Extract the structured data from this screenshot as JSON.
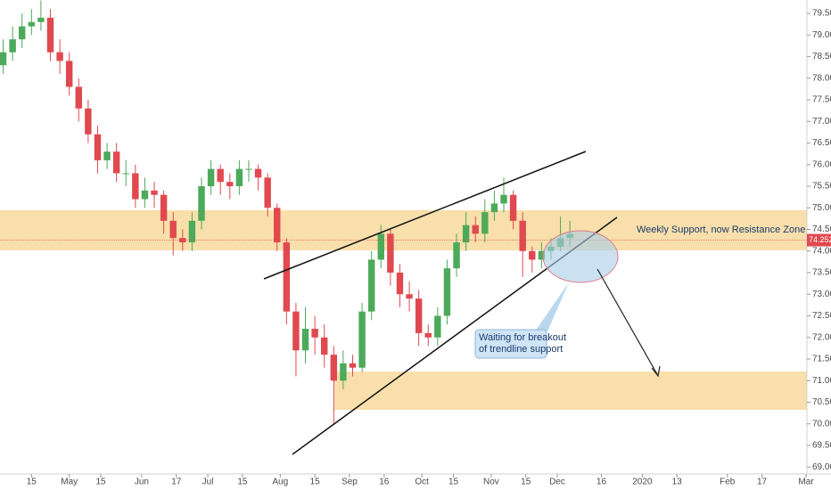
{
  "chart_data": {
    "type": "candlestick",
    "x": [
      -9,
      -6,
      -3,
      0,
      3,
      6,
      9,
      12,
      15,
      18,
      21,
      24,
      27,
      30,
      33,
      36,
      39,
      42,
      45,
      48,
      51,
      54,
      57,
      60,
      63,
      66,
      69,
      72,
      75,
      78,
      81,
      84,
      87,
      90,
      93,
      96,
      99,
      102,
      105,
      108,
      111,
      114,
      117,
      120,
      123,
      126,
      129,
      132,
      135,
      138,
      141,
      144,
      147,
      150,
      153,
      156,
      159,
      162,
      165,
      168,
      171
    ],
    "open": [
      78.3,
      78.6,
      78.9,
      79.2,
      79.3,
      79.4,
      78.6,
      78.4,
      77.8,
      77.3,
      76.7,
      76.1,
      76.3,
      75.8,
      75.8,
      75.2,
      75.4,
      75.3,
      74.7,
      74.3,
      74.2,
      74.7,
      75.5,
      75.9,
      75.6,
      75.5,
      75.9,
      75.9,
      75.7,
      75.0,
      74.2,
      72.6,
      71.7,
      72.2,
      72.0,
      71.6,
      71.0,
      71.4,
      71.3,
      72.6,
      73.8,
      74.4,
      73.5,
      73.0,
      72.9,
      72.1,
      72.0,
      72.5,
      73.6,
      74.2,
      74.6,
      74.4,
      74.9,
      75.1,
      75.3,
      74.7,
      74.0,
      73.8,
      74.0,
      74.1,
      74.3
    ],
    "high": [
      78.9,
      79.2,
      79.5,
      79.6,
      79.8,
      79.6,
      78.9,
      78.6,
      78.0,
      77.5,
      76.9,
      76.5,
      76.5,
      76.1,
      76.0,
      75.7,
      75.6,
      75.4,
      74.9,
      74.5,
      74.9,
      75.7,
      76.1,
      76.0,
      75.8,
      76.1,
      76.1,
      76.0,
      75.8,
      75.1,
      74.3,
      72.8,
      72.7,
      72.5,
      72.3,
      71.8,
      71.7,
      71.6,
      72.8,
      74.0,
      74.6,
      74.5,
      73.7,
      73.3,
      73.1,
      72.3,
      72.7,
      73.8,
      74.4,
      74.9,
      74.8,
      75.2,
      75.4,
      75.7,
      75.4,
      74.9,
      74.1,
      74.2,
      74.3,
      74.8,
      74.7
    ],
    "low": [
      78.1,
      78.4,
      78.7,
      79.0,
      79.1,
      78.4,
      78.1,
      77.6,
      77.0,
      76.5,
      75.8,
      75.9,
      75.6,
      75.5,
      75.0,
      75.0,
      75.0,
      74.4,
      73.9,
      74.0,
      74.0,
      74.5,
      75.3,
      75.3,
      75.2,
      75.3,
      75.6,
      75.4,
      74.8,
      74.0,
      72.3,
      71.1,
      71.4,
      71.6,
      71.3,
      70.0,
      70.8,
      71.1,
      71.2,
      72.4,
      73.6,
      73.2,
      72.7,
      72.6,
      71.8,
      71.8,
      71.8,
      72.3,
      73.4,
      74.0,
      74.2,
      74.2,
      74.7,
      74.9,
      74.5,
      73.4,
      73.5,
      73.6,
      73.8,
      74.0,
      74.1
    ],
    "close": [
      78.6,
      78.9,
      79.2,
      79.3,
      79.4,
      78.6,
      78.4,
      77.8,
      77.3,
      76.7,
      76.1,
      76.3,
      75.8,
      75.8,
      75.2,
      75.4,
      75.3,
      74.7,
      74.3,
      74.2,
      74.7,
      75.5,
      75.9,
      75.6,
      75.5,
      75.9,
      75.9,
      75.7,
      75.0,
      74.2,
      72.6,
      71.7,
      72.2,
      72.0,
      71.6,
      71.0,
      71.4,
      71.3,
      72.6,
      73.8,
      74.4,
      73.5,
      73.0,
      72.9,
      72.1,
      72.0,
      72.5,
      73.6,
      74.2,
      74.6,
      74.4,
      74.9,
      75.1,
      75.3,
      74.7,
      74.0,
      73.8,
      74.0,
      74.1,
      74.3,
      74.4
    ],
    "up_color": "#4caa5a",
    "down_color": "#e0494f",
    "last_price": {
      "value": 74.252,
      "label": "74.252"
    },
    "last_price_color": "#e0494f",
    "xlim": [
      -10,
      246
    ],
    "xticks": [
      {
        "value": 0,
        "label": "15"
      },
      {
        "value": 12,
        "label": "May"
      },
      {
        "value": 22,
        "label": "15"
      },
      {
        "value": 35,
        "label": "Jun"
      },
      {
        "value": 46,
        "label": "17"
      },
      {
        "value": 56,
        "label": "Jul"
      },
      {
        "value": 67,
        "label": "15"
      },
      {
        "value": 79,
        "label": "Aug"
      },
      {
        "value": 90,
        "label": "15"
      },
      {
        "value": 101,
        "label": "Sep"
      },
      {
        "value": 112,
        "label": "16"
      },
      {
        "value": 124,
        "label": "Oct"
      },
      {
        "value": 134,
        "label": "15"
      },
      {
        "value": 146,
        "label": "Nov"
      },
      {
        "value": 157,
        "label": "15"
      },
      {
        "value": 167,
        "label": "Dec"
      },
      {
        "value": 181,
        "label": "16"
      },
      {
        "value": 194,
        "label": "2020"
      },
      {
        "value": 205,
        "label": "13"
      },
      {
        "value": 221,
        "label": "Feb"
      },
      {
        "value": 232,
        "label": "17"
      },
      {
        "value": 246,
        "label": "Mar"
      }
    ],
    "ylim": [
      68.84,
      79.81
    ],
    "yticks": [
      {
        "value": 69,
        "label": "69.000"
      },
      {
        "value": 69.5,
        "label": "69.500"
      },
      {
        "value": 70,
        "label": "70.000"
      },
      {
        "value": 70.5,
        "label": "70.500"
      },
      {
        "value": 71,
        "label": "71.000"
      },
      {
        "value": 71.5,
        "label": "71.500"
      },
      {
        "value": 72,
        "label": "72.000"
      },
      {
        "value": 72.5,
        "label": "72.500"
      },
      {
        "value": 73,
        "label": "73.000"
      },
      {
        "value": 73.5,
        "label": "73.500"
      },
      {
        "value": 74,
        "label": "74.000"
      },
      {
        "value": 74.5,
        "label": "74.500"
      },
      {
        "value": 75,
        "label": "75.000"
      },
      {
        "value": 75.5,
        "label": "75.500"
      },
      {
        "value": 76,
        "label": "76.000"
      },
      {
        "value": 76.5,
        "label": "76.500"
      },
      {
        "value": 77,
        "label": "77.000"
      },
      {
        "value": 77.5,
        "label": "77.500"
      },
      {
        "value": 78,
        "label": "78.000"
      },
      {
        "value": 78.5,
        "label": "78.500"
      },
      {
        "value": 79,
        "label": "79.000"
      },
      {
        "value": 79.5,
        "label": "79.500"
      }
    ],
    "grid": false,
    "annotations": {
      "zone_label": "Weekly Support, now Resistance Zone",
      "callout_line1": "Waiting for breakout",
      "callout_line2": "of trendline support"
    }
  }
}
